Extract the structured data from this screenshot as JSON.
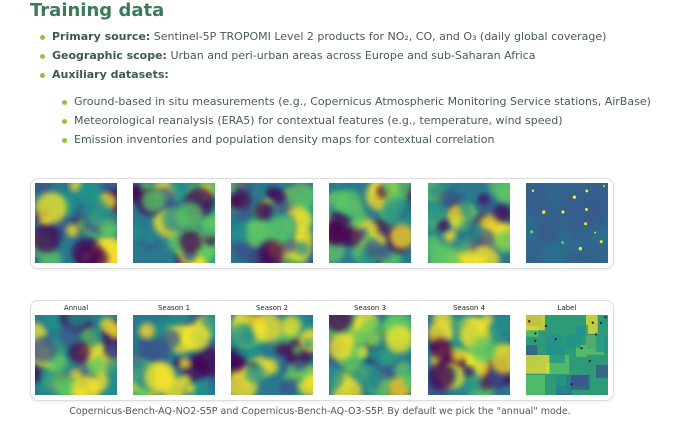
{
  "title": "Training data",
  "bullets": [
    {
      "label": "Primary source:",
      "text": "Sentinel-5P TROPOMI Level 2 products for NO₂, CO, and O₃ (daily global coverage)"
    },
    {
      "label": "Geographic scope:",
      "text": "Urban and peri-urban areas across Europe and sub-Saharan Africa"
    },
    {
      "label": "Auxiliary datasets:"
    }
  ],
  "sub_bullets": [
    "Ground-based in situ measurements (e.g., Copernicus Atmospheric Monitoring Service stations, AirBase)",
    "Meteorological reanalysis (ERA5) for contextual features (e.g., temperature, wind speed)",
    "Emission inventories and population density maps for contextual correlation"
  ],
  "panel_2": {
    "labels": [
      "Annual",
      "Season 1",
      "Season 2",
      "Season 3",
      "Season 4",
      "Label"
    ]
  },
  "caption": "Copernicus-Bench-AQ-NO2-S5P and Copernicus-Bench-AQ-O3-S5P. By default we pick the \"annual\" mode."
}
